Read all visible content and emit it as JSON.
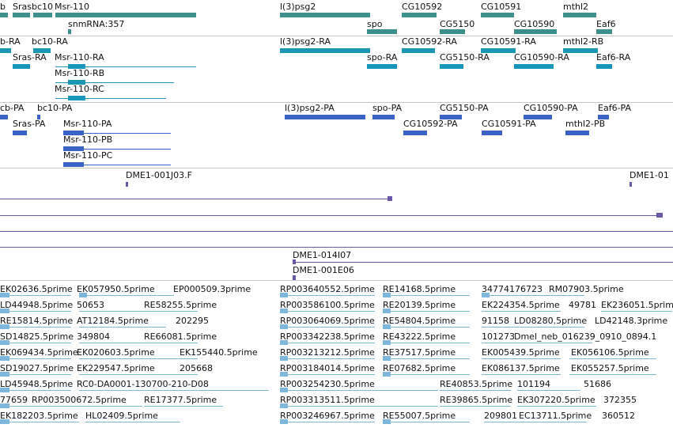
{
  "colors": {
    "gene": "#3d8f8c",
    "transcript": "#1a96b8",
    "protein": "#3a62c7",
    "clone": "#6a57a8",
    "est": "#7db8dc"
  },
  "genes": {
    "row1": [
      "b",
      "Srasbc10",
      "Msr-110",
      "l(3)psg2",
      "CG10592",
      "CG10591",
      "mthl2"
    ],
    "row2": [
      "snmRNA:357",
      "spo",
      "CG5150",
      "CG10590",
      "Eaf6"
    ]
  },
  "transcripts": {
    "row1": [
      "b-RA",
      "bc10-RA",
      "l(3)psg2-RA",
      "CG10592-RA",
      "CG10591-RA",
      "mthl2-RB"
    ],
    "row2": [
      "Sras-RA",
      "Msr-110-RA",
      "spo-RA",
      "CG5150-RA",
      "CG10590-RA",
      "Eaf6-RA"
    ],
    "row3": [
      "Msr-110-RB"
    ],
    "row4": [
      "Msr-110-RC"
    ]
  },
  "proteins": {
    "row1": [
      "cb-PA",
      "bc10-PA",
      "l(3)psg2-PA",
      "spo-PA",
      "CG5150-PA",
      "CG10590-PA",
      "Eaf6-PA"
    ],
    "row2": [
      "Sras-PA",
      "Msr-110-PA",
      "CG10592-PA",
      "CG10591-PA",
      "mthl2-PB"
    ],
    "row3": [
      "Msr-110-PB"
    ],
    "row4": [
      "Msr-110-PC"
    ]
  },
  "clones": {
    "row1": [
      "DME1-001J03.F",
      "DME1-01"
    ],
    "row2": [
      "DME1-014I07"
    ],
    "row3": [
      "DME1-001E06"
    ]
  },
  "ests": [
    [
      "EK02636.5prime",
      "EK057950.5prime",
      "EP000509.3prime",
      "RP003640552.5prime",
      "RE14168.5prime",
      "34774176723",
      "RM07903.5prime"
    ],
    [
      "LD44948.5prime",
      "50653",
      "RE58255.5prime",
      "RP003586100.5prime",
      "RE20139.5prime",
      "EK224354.5prime",
      "49781",
      "EK236051.5prime"
    ],
    [
      "RE15814.5prime",
      "AT12184.5prime",
      "202295",
      "RP003064069.5prime",
      "RE54804.5prime",
      "91158",
      "LD08280.5prime",
      "LD42148.3prime"
    ],
    [
      "SD14825.5prime",
      "349804",
      "RE66081.5prime",
      "RP003342238.5prime",
      "RE43222.5prime",
      "101273",
      "Dmel_neb_016239_0910_0894.1"
    ],
    [
      "EK069434.5prime",
      "EK020603.5prime",
      "EK155440.5prime",
      "RP003213212.5prime",
      "RE37517.5prime",
      "EK005439.5prime",
      "EK056106.5prime"
    ],
    [
      "SD19027.5prime",
      "EK229547.5prime",
      "205668",
      "RP003184014.5prime",
      "RE07682.5prime",
      "EK086137.5prime",
      "EK055257.5prime"
    ],
    [
      "LD45948.5prime",
      "RC0-DA0001-130700-210-D08",
      "RP003254230.5prime",
      "RE40853.5prime",
      "101194",
      "51686"
    ],
    [
      "77659",
      "RP003500672.5prime",
      "RE17377.5prime",
      "RP003313511.5prime",
      "RE39865.5prime",
      "EK307220.5prime",
      "372355"
    ],
    [
      "EK182203.5prime",
      "HL02409.5prime",
      "RP003246967.5prime",
      "RE55007.5prime",
      "209801",
      "EC13711.5prime",
      "360512"
    ]
  ]
}
